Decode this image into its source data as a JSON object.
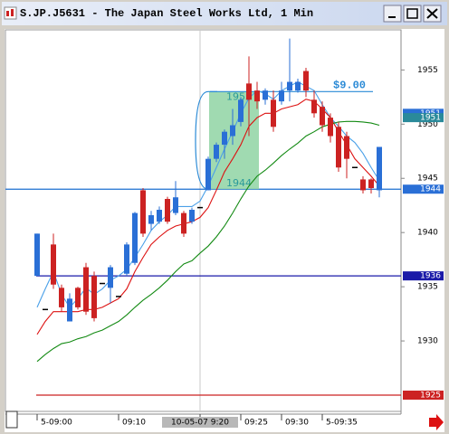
{
  "window": {
    "title": "S.JP.J5631 - The Japan Steel Works Ltd, 1 Min"
  },
  "chart_data": {
    "type": "candlestick",
    "categories": [
      "5-09:00",
      null,
      null,
      null,
      null,
      null,
      null,
      null,
      null,
      null,
      "09:10",
      null,
      null,
      null,
      null,
      null,
      null,
      null,
      null,
      null,
      "10-05-07 9:20",
      null,
      null,
      null,
      null,
      "09:25",
      null,
      null,
      null,
      null,
      "09:30",
      null,
      null,
      null,
      null,
      "5-09:35",
      null,
      null,
      null,
      null,
      null,
      null,
      null
    ],
    "crosshair_index": 20,
    "open": [
      1936.0,
      1932.9,
      1938.9,
      1934.9,
      1931.8,
      1934.9,
      1936.8,
      1936.0,
      1935.3,
      1934.9,
      1934.1,
      1936.2,
      1937.2,
      1943.9,
      1940.8,
      1941.0,
      1943.1,
      1941.8,
      1941.8,
      1941.0,
      1942.3,
      1943.9,
      1946.8,
      1948.1,
      1948.9,
      1950.2,
      1953.75,
      1953.1,
      1952.25,
      1952.25,
      1952.1,
      1953.1,
      1953.1,
      1954.9,
      1952.25,
      1951.6,
      1950.6,
      1949.75,
      1948.9,
      1946.0,
      1944.9,
      1944.9,
      1943.9
    ],
    "high": [
      1939.9,
      1932.9,
      1939.9,
      1935.2,
      1934.4,
      1935.0,
      1937.2,
      1936.4,
      1935.3,
      1937.0,
      1934.1,
      1939.1,
      1941.9,
      1944.1,
      1942.0,
      1942.4,
      1943.3,
      1944.75,
      1942.0,
      1942.3,
      1942.3,
      1947.0,
      1948.3,
      1949.5,
      1951.4,
      1952.5,
      1956.25,
      1953.9,
      1953.3,
      1953.1,
      1953.9,
      1957.9,
      1954.2,
      1955.2,
      1953.1,
      1952.1,
      1951.0,
      1950.2,
      1949.3,
      1946.0,
      1945.2,
      1945.0,
      1947.9
    ],
    "low": [
      1936.0,
      1932.9,
      1934.8,
      1932.7,
      1931.8,
      1932.9,
      1932.4,
      1931.8,
      1935.3,
      1933.5,
      1934.1,
      1936.0,
      1937.0,
      1939.6,
      1940.2,
      1940.8,
      1940.8,
      1941.6,
      1939.6,
      1940.8,
      1942.3,
      1943.9,
      1946.5,
      1946.8,
      1948.1,
      1949.8,
      1948.9,
      1951.4,
      1951.8,
      1949.3,
      1951.8,
      1952.1,
      1952.9,
      1952.5,
      1950.6,
      1949.3,
      1948.3,
      1945.6,
      1945.0,
      1946.0,
      1943.6,
      1943.6,
      1943.25
    ],
    "close": [
      1939.9,
      1932.9,
      1935.2,
      1933.1,
      1933.9,
      1933.1,
      1932.7,
      1932.1,
      1935.3,
      1936.8,
      1934.1,
      1938.9,
      1941.8,
      1939.9,
      1941.6,
      1942.1,
      1941.0,
      1943.25,
      1939.9,
      1942.1,
      1942.3,
      1946.8,
      1948.1,
      1949.3,
      1949.9,
      1952.25,
      1952.25,
      1952.1,
      1953.1,
      1949.75,
      1953.1,
      1953.9,
      1953.9,
      1953.1,
      1951.0,
      1949.9,
      1948.9,
      1946.0,
      1946.8,
      1946.0,
      1943.9,
      1944.1,
      1947.9
    ],
    "up_color": "#2a6fd6",
    "down_color": "#cc2222",
    "flat_color": "#000000",
    "series": [
      {
        "color": "#4aa0e8",
        "values": [
          1933.1,
          1934.8,
          1936.4,
          1934.3,
          1933.1,
          1933.9,
          1934.9,
          1934.3,
          1934.8,
          1935.6,
          1936.0,
          1936.6,
          1937.7,
          1938.9,
          1940.2,
          1941.0,
          1941.6,
          1942.4,
          1942.4,
          1942.4,
          1942.9,
          1944.3,
          1946.0,
          1947.7,
          1949.3,
          1951.0,
          1952.4,
          1953.1,
          1952.8,
          1952.3,
          1953.1,
          1953.5,
          1953.9,
          1953.5,
          1953.1,
          1951.8,
          1950.6,
          1949.8,
          1948.9,
          1948.3,
          1947.3,
          1946.0,
          1944.8
        ]
      },
      {
        "color": "#dd1111",
        "values": [
          1930.6,
          1931.8,
          1932.7,
          1932.7,
          1932.7,
          1932.7,
          1932.9,
          1932.9,
          1933.1,
          1933.5,
          1933.9,
          1934.8,
          1936.4,
          1937.7,
          1938.9,
          1939.6,
          1940.2,
          1940.6,
          1940.8,
          1941.0,
          1941.4,
          1942.3,
          1943.9,
          1945.6,
          1946.8,
          1948.1,
          1949.8,
          1950.6,
          1951.0,
          1951.0,
          1951.4,
          1951.6,
          1951.8,
          1952.3,
          1952.1,
          1951.4,
          1950.6,
          1949.3,
          1948.1,
          1946.8,
          1946.0,
          1945.2,
          1944.3
        ]
      },
      {
        "color": "#138a13",
        "values": [
          1928.1,
          1928.75,
          1929.3,
          1929.75,
          1929.9,
          1930.2,
          1930.4,
          1930.75,
          1931.0,
          1931.4,
          1931.8,
          1932.4,
          1933.1,
          1933.75,
          1934.3,
          1934.9,
          1935.6,
          1936.4,
          1937.1,
          1937.4,
          1938.1,
          1938.75,
          1939.6,
          1940.6,
          1941.8,
          1943.1,
          1944.3,
          1945.2,
          1945.75,
          1946.4,
          1947.1,
          1947.7,
          1948.25,
          1948.9,
          1949.3,
          1949.75,
          1950.0,
          1950.2,
          1950.25,
          1950.25,
          1950.2,
          1950.1,
          1949.9
        ]
      }
    ],
    "levels": [
      {
        "value": 1944,
        "color": "#1c6fd0"
      },
      {
        "value": 1936,
        "color": "#1a1aa8"
      },
      {
        "value": 1925,
        "color": "#cc2222"
      }
    ],
    "badges": [
      {
        "value": 1951,
        "color": "#2a6fd6"
      },
      {
        "value": 1950.6,
        "label": "1951",
        "color": "#2a8a9a"
      },
      {
        "value": 1944,
        "color": "#2a6fd6"
      },
      {
        "value": 1936,
        "color": "#1a1aa8"
      },
      {
        "value": 1925,
        "color": "#cc2222"
      }
    ],
    "measure": {
      "from": 1944,
      "to": 1953,
      "label": "$9.00",
      "color": "#2a8ad6"
    },
    "ylim": [
      1923.5,
      1958.7
    ],
    "yticks": [
      1930,
      1935,
      1940,
      1945,
      1950,
      1955
    ]
  }
}
